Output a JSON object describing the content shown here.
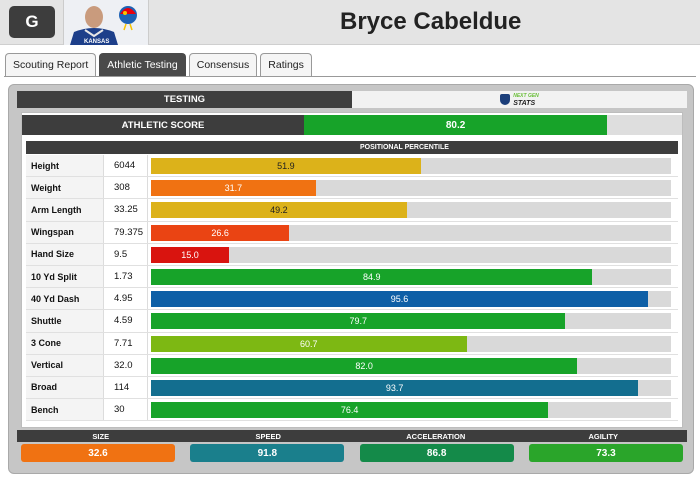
{
  "header": {
    "position": "G",
    "player_name": "Bryce Cabeldue",
    "team_wordmark": "KANSAS"
  },
  "tabs": [
    {
      "label": "Scouting Report",
      "active": false
    },
    {
      "label": "Athletic Testing",
      "active": true
    },
    {
      "label": "Consensus",
      "active": false
    },
    {
      "label": "Ratings",
      "active": false
    }
  ],
  "subtabs": {
    "testing_label": "TESTING",
    "ngs_top": "NEXT GEN",
    "ngs_bottom": "STATS"
  },
  "athletic_score": {
    "label": "ATHLETIC SCORE",
    "value": "80.2",
    "percent": 80.2,
    "color": "#17a329"
  },
  "percentile_header": "POSITIONAL PERCENTILE",
  "metrics": [
    {
      "label": "Height",
      "value": "6044",
      "percentile": "51.9",
      "pct": 51.9,
      "color": "#dcb21a",
      "text_color": "#222"
    },
    {
      "label": "Weight",
      "value": "308",
      "percentile": "31.7",
      "pct": 31.7,
      "color": "#f07212",
      "text_color": "#ffffff"
    },
    {
      "label": "Arm Length",
      "value": "33.25",
      "percentile": "49.2",
      "pct": 49.2,
      "color": "#dcb21a",
      "text_color": "#222"
    },
    {
      "label": "Wingspan",
      "value": "79.375",
      "percentile": "26.6",
      "pct": 26.6,
      "color": "#ea4413",
      "text_color": "#ffffff"
    },
    {
      "label": "Hand Size",
      "value": "9.5",
      "percentile": "15.0",
      "pct": 15.0,
      "color": "#d9140f",
      "text_color": "#ffffff"
    },
    {
      "label": "10 Yd Split",
      "value": "1.73",
      "percentile": "84.9",
      "pct": 84.9,
      "color": "#17a329",
      "text_color": "#ffffff"
    },
    {
      "label": "40 Yd Dash",
      "value": "4.95",
      "percentile": "95.6",
      "pct": 95.6,
      "color": "#0e5fa6",
      "text_color": "#ffffff"
    },
    {
      "label": "Shuttle",
      "value": "4.59",
      "percentile": "79.7",
      "pct": 79.7,
      "color": "#17a329",
      "text_color": "#ffffff"
    },
    {
      "label": "3 Cone",
      "value": "7.71",
      "percentile": "60.7",
      "pct": 60.7,
      "color": "#7db813",
      "text_color": "#ffffff"
    },
    {
      "label": "Vertical",
      "value": "32.0",
      "percentile": "82.0",
      "pct": 82.0,
      "color": "#17a329",
      "text_color": "#ffffff"
    },
    {
      "label": "Broad",
      "value": "114",
      "percentile": "93.7",
      "pct": 93.7,
      "color": "#136e8f",
      "text_color": "#ffffff"
    },
    {
      "label": "Bench",
      "value": "30",
      "percentile": "76.4",
      "pct": 76.4,
      "color": "#17a329",
      "text_color": "#ffffff"
    }
  ],
  "categories": [
    {
      "label": "SIZE",
      "value": "32.6",
      "color": "#f07212"
    },
    {
      "label": "SPEED",
      "value": "91.8",
      "color": "#1a7f8c"
    },
    {
      "label": "ACCELERATION",
      "value": "86.8",
      "color": "#148a49"
    },
    {
      "label": "AGILITY",
      "value": "73.3",
      "color": "#2aa52a"
    }
  ]
}
